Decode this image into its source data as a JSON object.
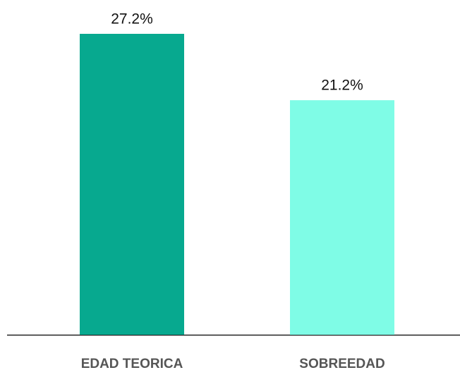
{
  "chart_data": {
    "type": "bar",
    "categories": [
      "EDAD TEORICA",
      "SOBREEDAD"
    ],
    "values": [
      27.2,
      21.2
    ],
    "value_labels": [
      "27.2%",
      "21.2%"
    ],
    "colors": [
      "#07a98f",
      "#7ffce6"
    ]
  }
}
